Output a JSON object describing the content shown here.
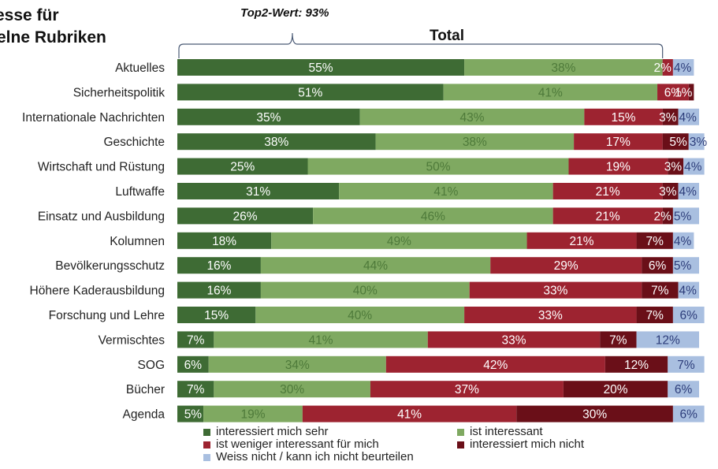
{
  "header": {
    "title_line1": "esse für",
    "title_line2": "elne Rubriken",
    "top2_label": "Top2-Wert: 93%",
    "total_label": "Total"
  },
  "colors": {
    "sehr": "#3e6b34",
    "interessant": "#7fa961",
    "weniger": "#9d2330",
    "nicht": "#6a0f18",
    "weissnicht": "#a9bfe0"
  },
  "legend": [
    {
      "key": "sehr",
      "label": "interessiert mich sehr"
    },
    {
      "key": "interessant",
      "label": "ist interessant"
    },
    {
      "key": "weniger",
      "label": "ist weniger interessant für mich"
    },
    {
      "key": "nicht",
      "label": "interessiert mich nicht"
    },
    {
      "key": "weissnicht",
      "label": "Weiss nicht / kann ich nicht beurteilen"
    }
  ],
  "chart_data": {
    "type": "bar",
    "orientation": "horizontal",
    "stacked": "100%",
    "categories": [
      "Aktuelles",
      "Sicherheitspolitik",
      "Internationale Nachrichten",
      "Geschichte",
      "Wirtschaft und Rüstung",
      "Luftwaffe",
      "Einsatz und Ausbildung",
      "Kolumnen",
      "Bevölkerungsschutz",
      "Höhere Kaderausbildung",
      "Forschung und Lehre",
      "Vermischtes",
      "SOG",
      "Bücher",
      "Agenda"
    ],
    "series": [
      {
        "name": "interessiert mich sehr",
        "key": "sehr",
        "values": [
          55,
          51,
          35,
          38,
          25,
          31,
          26,
          18,
          16,
          16,
          15,
          7,
          6,
          7,
          5
        ]
      },
      {
        "name": "ist interessant",
        "key": "interessant",
        "values": [
          38,
          41,
          43,
          38,
          50,
          41,
          46,
          49,
          44,
          40,
          40,
          41,
          34,
          30,
          19
        ]
      },
      {
        "name": "ist weniger interessant für mich",
        "key": "weniger",
        "values": [
          2,
          6,
          15,
          17,
          19,
          21,
          21,
          21,
          29,
          33,
          33,
          33,
          42,
          37,
          41
        ]
      },
      {
        "name": "interessiert mich nicht",
        "key": "nicht",
        "values": [
          0,
          1,
          3,
          5,
          3,
          3,
          2,
          7,
          6,
          7,
          7,
          7,
          12,
          20,
          30
        ]
      },
      {
        "name": "Weiss nicht / kann ich nicht beurteilen",
        "key": "weissnicht",
        "values": [
          4,
          0,
          4,
          3,
          4,
          4,
          5,
          4,
          5,
          4,
          6,
          12,
          7,
          6,
          6
        ]
      }
    ],
    "data_labels": [
      [
        "55%",
        "38%",
        "2%",
        "",
        "4%"
      ],
      [
        "51%",
        "41%",
        "6%",
        "1%",
        ""
      ],
      [
        "35%",
        "43%",
        "15%",
        "3%",
        "4%"
      ],
      [
        "38%",
        "38%",
        "17%",
        "5%",
        "3%"
      ],
      [
        "25%",
        "50%",
        "19%",
        "3%",
        "4%"
      ],
      [
        "31%",
        "41%",
        "21%",
        "3%",
        "4%"
      ],
      [
        "26%",
        "46%",
        "21%",
        "2%",
        "5%"
      ],
      [
        "18%",
        "49%",
        "21%",
        "7%",
        "4%"
      ],
      [
        "16%",
        "44%",
        "29%",
        "6%",
        "5%"
      ],
      [
        "16%",
        "40%",
        "33%",
        "7%",
        "4%"
      ],
      [
        "15%",
        "40%",
        "33%",
        "7%",
        "6%"
      ],
      [
        "7%",
        "41%",
        "33%",
        "7%",
        "12%"
      ],
      [
        "6%",
        "34%",
        "42%",
        "12%",
        "7%"
      ],
      [
        "7%",
        "30%",
        "37%",
        "20%",
        "6%"
      ],
      [
        "5%",
        "19%",
        "41%",
        "30%",
        "6%"
      ]
    ],
    "xlim": [
      0,
      100
    ],
    "grid": false,
    "legend_position": "bottom"
  }
}
